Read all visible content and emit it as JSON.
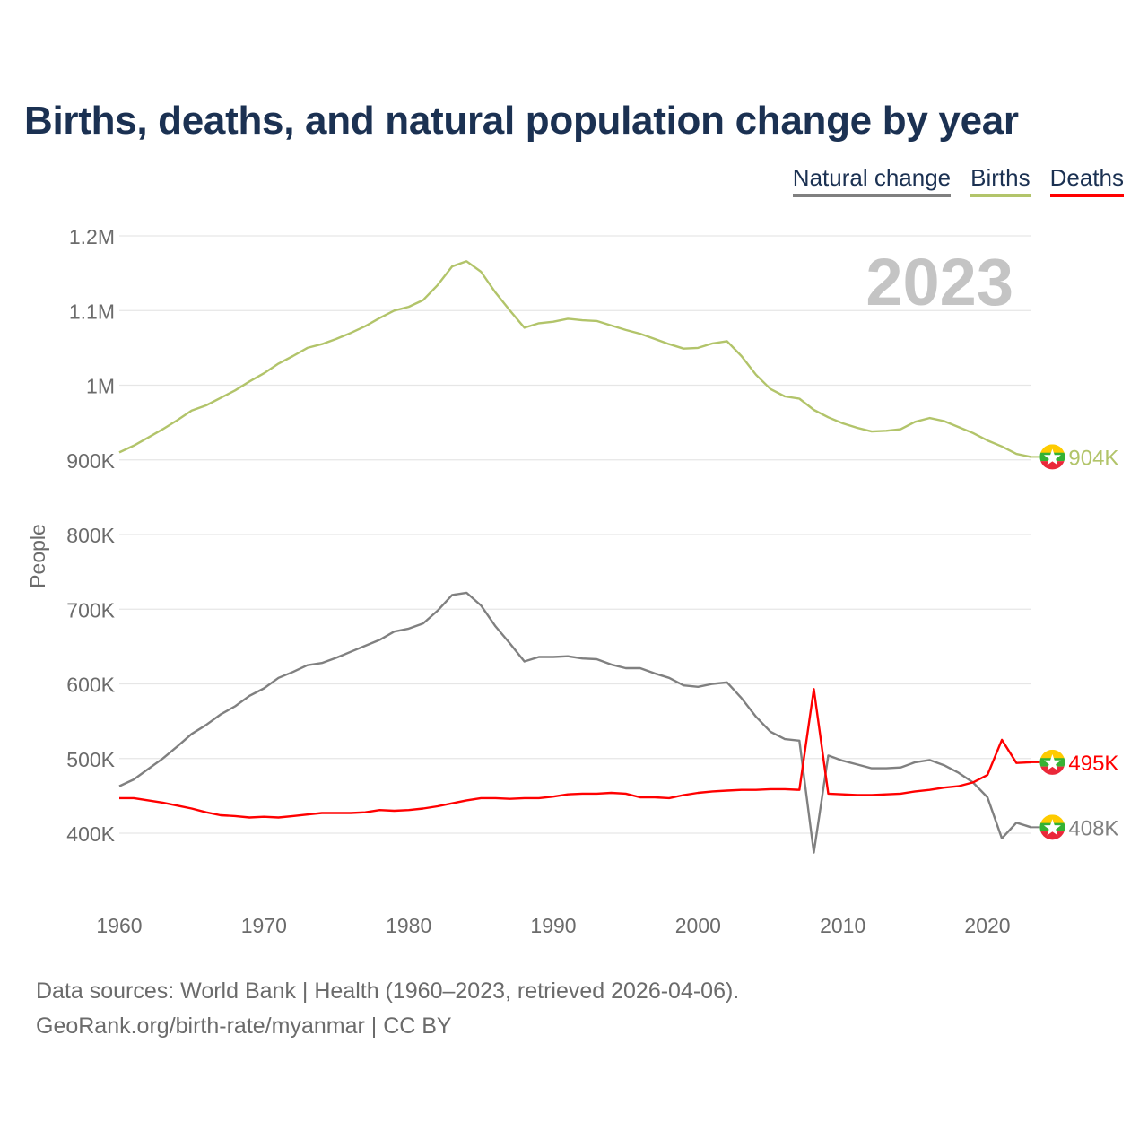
{
  "chart_data": {
    "type": "line",
    "title": "Births, deaths, and natural population change by year",
    "ylabel": "People",
    "xlabel": "",
    "year_watermark": "2023",
    "ylim": [
      330000,
      1200000
    ],
    "xlim": [
      1960,
      2023
    ],
    "y_ticks": [
      {
        "v": 400000,
        "label": "400K"
      },
      {
        "v": 500000,
        "label": "500K"
      },
      {
        "v": 600000,
        "label": "600K"
      },
      {
        "v": 700000,
        "label": "700K"
      },
      {
        "v": 800000,
        "label": "800K"
      },
      {
        "v": 900000,
        "label": "900K"
      },
      {
        "v": 1000000,
        "label": "1M"
      },
      {
        "v": 1100000,
        "label": "1.1M"
      },
      {
        "v": 1200000,
        "label": "1.2M"
      }
    ],
    "x_ticks": [
      {
        "v": 1960,
        "label": "1960"
      },
      {
        "v": 1970,
        "label": "1970"
      },
      {
        "v": 1980,
        "label": "1980"
      },
      {
        "v": 1990,
        "label": "1990"
      },
      {
        "v": 2000,
        "label": "2000"
      },
      {
        "v": 2010,
        "label": "2010"
      },
      {
        "v": 2020,
        "label": "2020"
      }
    ],
    "grid": true,
    "legend_position": "top-right",
    "x_start": 1960,
    "series": [
      {
        "name": "Natural change",
        "color": "#808080",
        "end_label": "408K",
        "values": [
          463,
          472,
          486,
          500,
          516,
          533,
          545,
          559,
          570,
          584,
          594,
          608,
          616,
          625,
          628,
          635,
          643,
          651,
          659,
          670,
          674,
          681,
          698,
          719,
          722,
          705,
          677,
          654,
          630,
          636,
          636,
          637,
          634,
          633,
          626,
          621,
          621,
          614,
          608,
          598,
          596,
          600,
          602,
          581,
          556,
          536,
          526,
          524,
          374,
          504,
          497,
          492,
          487,
          487,
          488,
          495,
          498,
          491,
          481,
          468,
          448,
          393,
          414,
          408
        ]
      },
      {
        "name": "Births",
        "color": "#b2c46a",
        "end_label": "904K",
        "values": [
          910,
          919,
          930,
          941,
          953,
          966,
          973,
          983,
          993,
          1005,
          1016,
          1029,
          1039,
          1050,
          1055,
          1062,
          1070,
          1079,
          1090,
          1100,
          1105,
          1114,
          1134,
          1159,
          1166,
          1152,
          1124,
          1100,
          1077,
          1083,
          1085,
          1089,
          1087,
          1086,
          1080,
          1074,
          1069,
          1062,
          1055,
          1049,
          1050,
          1056,
          1059,
          1039,
          1014,
          995,
          985,
          982,
          967,
          957,
          949,
          943,
          938,
          939,
          941,
          951,
          956,
          952,
          944,
          936,
          926,
          918,
          908,
          904
        ]
      },
      {
        "name": "Deaths",
        "color": "#ff0000",
        "end_label": "495K",
        "values": [
          447,
          447,
          444,
          441,
          437,
          433,
          428,
          424,
          423,
          421,
          422,
          421,
          423,
          425,
          427,
          427,
          427,
          428,
          431,
          430,
          431,
          433,
          436,
          440,
          444,
          447,
          447,
          446,
          447,
          447,
          449,
          452,
          453,
          453,
          454,
          453,
          448,
          448,
          447,
          451,
          454,
          456,
          457,
          458,
          458,
          459,
          459,
          458,
          593,
          453,
          452,
          451,
          451,
          452,
          453,
          456,
          458,
          461,
          463,
          468,
          478,
          525,
          494,
          495
        ]
      }
    ],
    "value_unit": "thousands of people"
  },
  "footer": {
    "line1": "Data sources: World Bank | Health (1960–2023, retrieved 2026-04-06).",
    "line2": "GeoRank.org/birth-rate/myanmar | CC BY"
  }
}
